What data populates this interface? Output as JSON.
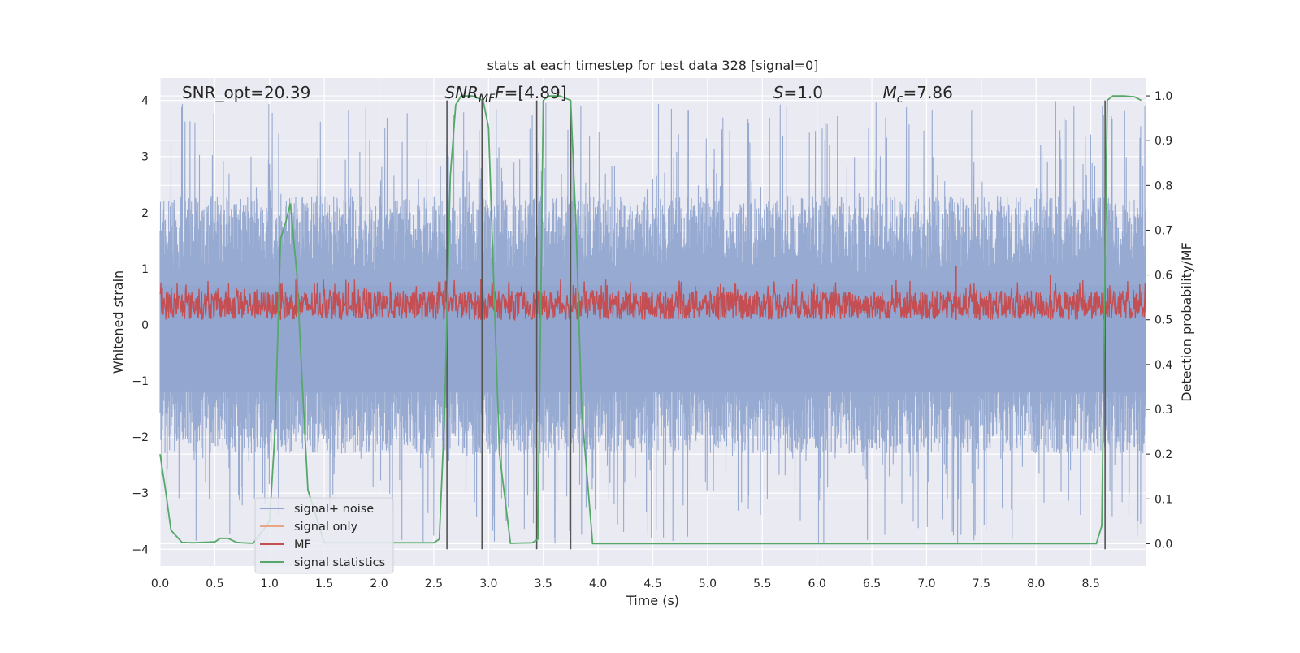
{
  "chart_data": {
    "type": "line",
    "title": "stats at each timestep for test data 328 [signal=0]",
    "xlabel": "Time (s)",
    "ylabel": "Whitened strain",
    "ylabel_right": "Detection probability/MF",
    "xlim": [
      0.0,
      9.0
    ],
    "ylim": [
      -4.3,
      4.4
    ],
    "ylim_right": [
      -0.05,
      1.04
    ],
    "xticks": [
      0.0,
      0.5,
      1.0,
      1.5,
      2.0,
      2.5,
      3.0,
      3.5,
      4.0,
      4.5,
      5.0,
      5.5,
      6.0,
      6.5,
      7.0,
      7.5,
      8.0,
      8.5
    ],
    "xtick_labels": [
      "0.0",
      "0.5",
      "1.0",
      "1.5",
      "2.0",
      "2.5",
      "3.0",
      "3.5",
      "4.0",
      "4.5",
      "5.0",
      "5.5",
      "6.0",
      "6.5",
      "7.0",
      "7.5",
      "8.0",
      "8.5"
    ],
    "yticks": [
      -4,
      -3,
      -2,
      -1,
      0,
      1,
      2,
      3,
      4
    ],
    "ytick_labels": [
      "−4",
      "−3",
      "−2",
      "−1",
      "0",
      "1",
      "2",
      "3",
      "4"
    ],
    "yticks_right": [
      0.0,
      0.1,
      0.2,
      0.3,
      0.4,
      0.5,
      0.6,
      0.7,
      0.8,
      0.9,
      1.0
    ],
    "ytick_labels_right": [
      "0.0",
      "0.1",
      "0.2",
      "0.3",
      "0.4",
      "0.5",
      "0.6",
      "0.7",
      "0.8",
      "0.9",
      "1.0"
    ],
    "grid": true,
    "legend_position": "lower-left",
    "annotations": [
      {
        "text": "SNR_opt=20.39",
        "x": 0.2
      },
      {
        "text": "SNR",
        "sub": "MF",
        "rest": "F=[4.89]",
        "italic": true,
        "x": 2.6
      },
      {
        "text": "S",
        "rest": "=1.0",
        "italic": true,
        "x": 5.6
      },
      {
        "text": "M",
        "sub": "c",
        "rest": "=7.86",
        "italic": true,
        "x": 6.6
      }
    ],
    "series": [
      {
        "name": "signal+ noise",
        "color": "#92a6cf",
        "axis": "left",
        "envelope": {
          "upper_typ": 1.6,
          "lower_typ": -1.6,
          "upper_peak": 4.0,
          "lower_peak": -3.9
        }
      },
      {
        "name": "signal only",
        "color": "#e8a587",
        "axis": "left",
        "values": []
      },
      {
        "name": "MF",
        "color": "#c44e52",
        "axis": "right",
        "band": [
          0.5,
          0.565
        ],
        "peaks": [
          [
            7.27,
            0.62
          ],
          [
            8.13,
            0.6
          ],
          [
            2.93,
            0.59
          ],
          [
            1.1,
            0.58
          ]
        ]
      },
      {
        "name": "signal statistics",
        "color": "#55a868",
        "axis": "right",
        "x": [
          0.0,
          0.05,
          0.1,
          0.2,
          0.3,
          0.5,
          0.55,
          0.62,
          0.7,
          0.75,
          0.85,
          1.0,
          1.05,
          1.1,
          1.15,
          1.19,
          1.25,
          1.3,
          1.35,
          1.5,
          2.5,
          2.55,
          2.6,
          2.65,
          2.7,
          2.75,
          2.85,
          2.95,
          3.0,
          3.1,
          3.2,
          3.4,
          3.45,
          3.5,
          3.55,
          3.65,
          3.75,
          3.8,
          3.85,
          3.95,
          8.5,
          8.55,
          8.6,
          8.65,
          8.7,
          8.8,
          8.9,
          8.96
        ],
        "y": [
          0.2,
          0.12,
          0.03,
          0.003,
          0.002,
          0.004,
          0.012,
          0.012,
          0.003,
          0.002,
          0.001,
          0.05,
          0.25,
          0.68,
          0.72,
          0.76,
          0.6,
          0.35,
          0.12,
          0.002,
          0.002,
          0.01,
          0.3,
          0.82,
          0.98,
          1.0,
          1.0,
          0.99,
          0.93,
          0.2,
          0.001,
          0.002,
          0.01,
          0.99,
          1.0,
          1.0,
          0.99,
          0.7,
          0.3,
          0.0,
          0.0,
          0.0,
          0.04,
          0.99,
          1.0,
          1.0,
          0.998,
          0.99
        ]
      },
      {
        "name": "",
        "color": "#555555",
        "axis": "left",
        "type": "vlines",
        "x": [
          2.62,
          2.94,
          3.44,
          3.75,
          8.63
        ],
        "ymin": -4.0,
        "ymax": 4.0
      }
    ]
  },
  "legend": {
    "items": [
      {
        "label": "signal+ noise",
        "color": "#92a6cf"
      },
      {
        "label": "signal only",
        "color": "#e8a587"
      },
      {
        "label": "MF",
        "color": "#c44e52"
      },
      {
        "label": "signal statistics",
        "color": "#55a868"
      }
    ]
  },
  "colors": {
    "plot_background": "#eaeaf2",
    "grid": "#ffffff",
    "text": "#262626"
  }
}
